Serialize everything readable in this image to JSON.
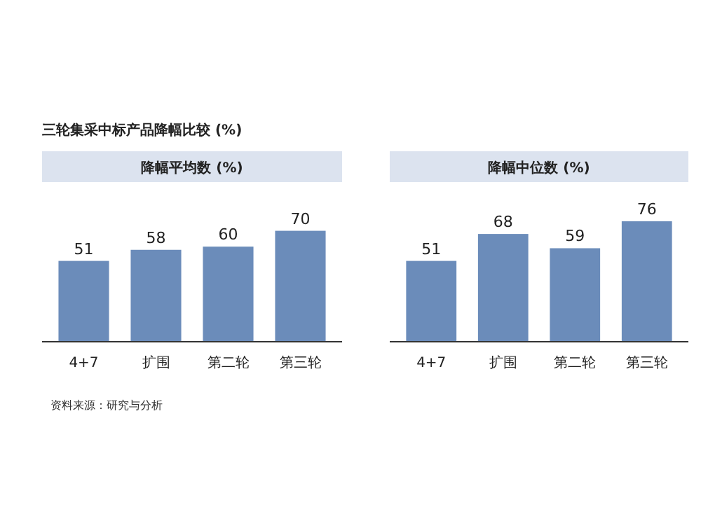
{
  "chart_data": [
    {
      "type": "bar",
      "title": "三轮集采中标产品降幅比较 (%)",
      "subtitle": "降幅平均数 (%)",
      "categories": [
        "4+7",
        "扩围",
        "第二轮",
        "第三轮"
      ],
      "values": [
        51,
        58,
        60,
        70
      ],
      "color": "#6b8cba",
      "data_labels": true,
      "annotations": [
        "资料来源：研究与分析"
      ]
    },
    {
      "type": "bar",
      "subtitle": "降幅中位数 (%)",
      "categories": [
        "4+7",
        "扩围",
        "第二轮",
        "第三轮"
      ],
      "values": [
        51,
        68,
        59,
        76
      ],
      "color": "#6b8cba",
      "data_labels": true
    }
  ]
}
